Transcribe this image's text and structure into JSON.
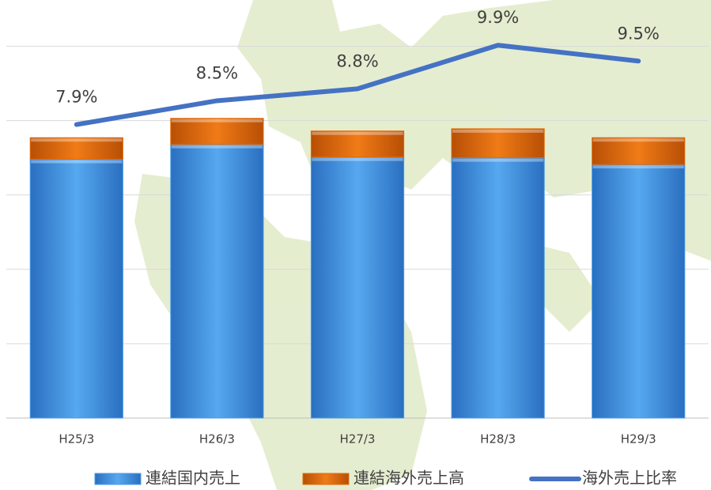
{
  "chart_data": {
    "type": "bar_line",
    "categories": [
      "H25/3",
      "H26/3",
      "H27/3",
      "H28/3",
      "H29/3"
    ],
    "series": [
      {
        "name": "連結国内売上",
        "color": "#4a9ee8",
        "type": "bar",
        "values": [
          3.48,
          3.68,
          3.51,
          3.5,
          3.41
        ]
      },
      {
        "name": "連結海外売上高",
        "color": "#e36c0a",
        "type": "bar",
        "values": [
          0.29,
          0.35,
          0.35,
          0.39,
          0.36
        ]
      },
      {
        "name": "海外売上比率",
        "color": "#4472c4",
        "type": "line",
        "axis": "y2",
        "values": [
          7.9,
          8.5,
          8.8,
          9.9,
          9.5
        ],
        "value_labels": [
          "7.9%",
          "8.5%",
          "8.8%",
          "9.9%",
          "9.5%"
        ]
      }
    ],
    "ylim": [
      0,
      5.6
    ],
    "yticks": [
      0,
      1,
      2,
      3,
      4,
      5
    ],
    "y2lim": [
      0.5,
      11
    ],
    "grid": true
  }
}
